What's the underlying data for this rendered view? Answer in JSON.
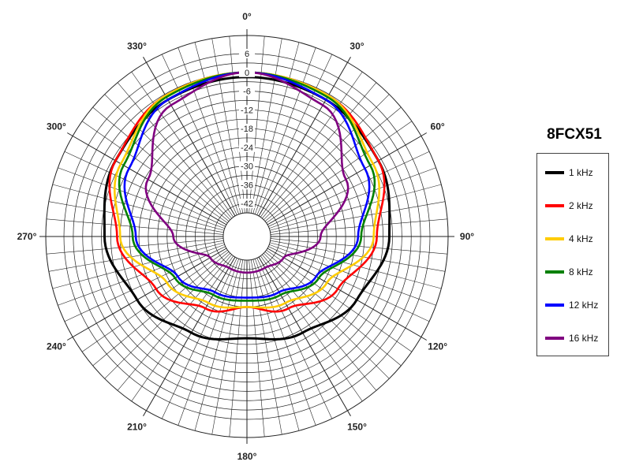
{
  "chart_data": {
    "type": "polar-line",
    "title": "8FCX51",
    "radial_axis": {
      "min": -45,
      "max": 6,
      "ticks": [
        6,
        0,
        -6,
        -12,
        -18,
        -24,
        -30,
        -36,
        -42
      ]
    },
    "angular_axis": {
      "labels": [
        "0°",
        "30°",
        "60°",
        "90°",
        "120°",
        "150°",
        "180°",
        "210°",
        "240°",
        "270°",
        "300°",
        "330°"
      ],
      "direction": "clockwise",
      "zero_at": "top"
    },
    "grid": true,
    "legend_position": "right",
    "angles_deg": [
      0,
      30,
      60,
      90,
      120,
      150,
      180,
      210,
      240,
      270,
      300,
      330
    ],
    "series": [
      {
        "name": "1 kHz",
        "color": "#000000",
        "values": [
          -1.5,
          -2,
          -4,
          -7,
          -12,
          -17,
          -20,
          -17,
          -12,
          -7,
          -4,
          -2
        ]
      },
      {
        "name": "2 kHz",
        "color": "#ff0000",
        "values": [
          0,
          -0.5,
          -4,
          -11,
          -19,
          -26,
          -30,
          -26,
          -19,
          -11,
          -4,
          -0.5
        ]
      },
      {
        "name": "4 kHz",
        "color": "#ffcc00",
        "values": [
          0,
          -0.5,
          -6,
          -12,
          -23,
          -28,
          -30,
          -28,
          -23,
          -12,
          -6,
          -0.5
        ]
      },
      {
        "name": "8 kHz",
        "color": "#008000",
        "values": [
          0,
          -1,
          -7,
          -16,
          -26,
          -31,
          -32,
          -31,
          -26,
          -16,
          -7,
          -1
        ]
      },
      {
        "name": "12 kHz",
        "color": "#0000ff",
        "values": [
          0,
          -2,
          -9,
          -17,
          -27,
          -32,
          -33,
          -32,
          -27,
          -17,
          -9,
          -2
        ]
      },
      {
        "name": "16 kHz",
        "color": "#800080",
        "values": [
          0,
          -4,
          -16,
          -29,
          -39,
          -41,
          -41,
          -41,
          -39,
          -29,
          -16,
          -4
        ]
      }
    ]
  }
}
